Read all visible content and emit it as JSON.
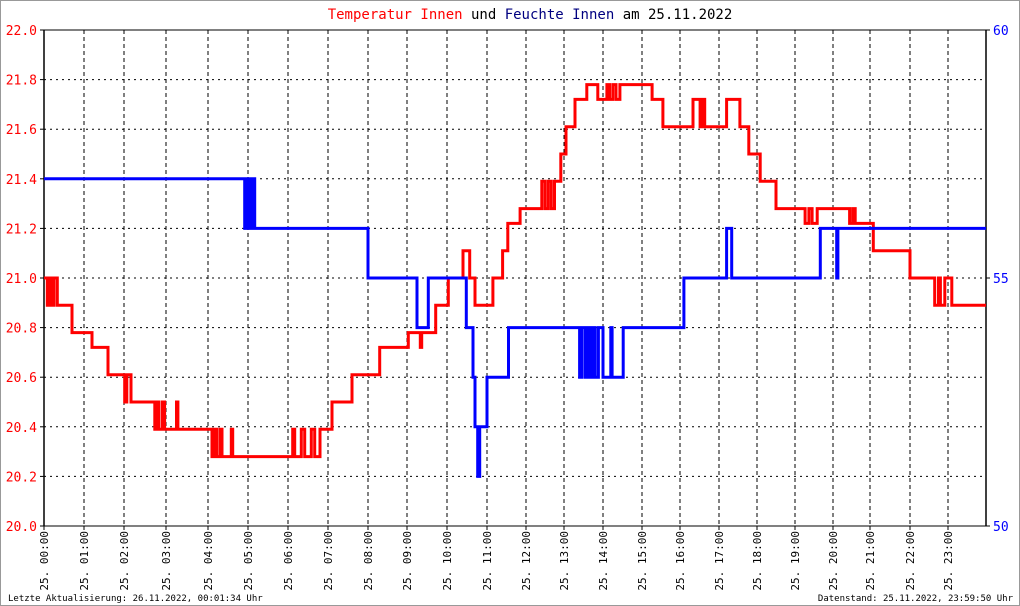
{
  "title": {
    "part1": "Temperatur Innen",
    "part2": " und ",
    "part3": "Feuchte Innen",
    "part4": " am 25.11.2022"
  },
  "footer": {
    "left": "Letzte Aktualisierung: 26.11.2022, 00:01:34 Uhr",
    "right": "Datenstand: 25.11.2022, 23:59:50 Uhr"
  },
  "colors": {
    "temperature": "#ff0000",
    "humidity": "#0000ff",
    "title_humidity": "#000080",
    "grid": "#000000"
  },
  "chart_data": {
    "type": "line",
    "step": true,
    "grid": true,
    "x_range": [
      "00:00",
      "24:00"
    ],
    "x_tick_labels": [
      "25. 00:00",
      "25. 01:00",
      "25. 02:00",
      "25. 03:00",
      "25. 04:00",
      "25. 05:00",
      "25. 06:00",
      "25. 07:00",
      "25. 08:00",
      "25. 09:00",
      "25. 10:00",
      "25. 11:00",
      "25. 12:00",
      "25. 13:00",
      "25. 14:00",
      "25. 15:00",
      "25. 16:00",
      "25. 17:00",
      "25. 18:00",
      "25. 19:00",
      "25. 20:00",
      "25. 21:00",
      "25. 22:00",
      "25. 23:00"
    ],
    "y_left": {
      "range": [
        20.0,
        22.0
      ],
      "tick_labels": [
        "20.0",
        "20.2",
        "20.4",
        "20.6",
        "20.8",
        "21.0",
        "21.2",
        "21.4",
        "21.6",
        "21.8",
        "22.0"
      ]
    },
    "y_right": {
      "range": [
        50,
        60
      ],
      "tick_labels": [
        "50",
        "55",
        "60"
      ]
    },
    "series": [
      {
        "name": "Temperatur Innen",
        "axis": "left",
        "color": "#ff0000",
        "points": [
          [
            "00:00",
            21.0
          ],
          [
            "00:05",
            20.89
          ],
          [
            "00:08",
            21.0
          ],
          [
            "00:12",
            20.89
          ],
          [
            "00:15",
            21.0
          ],
          [
            "00:20",
            20.89
          ],
          [
            "00:42",
            20.78
          ],
          [
            "01:12",
            20.72
          ],
          [
            "01:36",
            20.61
          ],
          [
            "02:01",
            20.5
          ],
          [
            "02:04",
            20.61
          ],
          [
            "02:10",
            20.5
          ],
          [
            "02:44",
            20.39
          ],
          [
            "02:47",
            20.5
          ],
          [
            "02:50",
            20.39
          ],
          [
            "02:55",
            20.5
          ],
          [
            "02:58",
            20.39
          ],
          [
            "03:15",
            20.5
          ],
          [
            "03:17",
            20.39
          ],
          [
            "04:06",
            20.28
          ],
          [
            "04:10",
            20.39
          ],
          [
            "04:13",
            20.28
          ],
          [
            "04:18",
            20.39
          ],
          [
            "04:21",
            20.28
          ],
          [
            "04:35",
            20.39
          ],
          [
            "04:37",
            20.28
          ],
          [
            "06:07",
            20.39
          ],
          [
            "06:10",
            20.28
          ],
          [
            "06:20",
            20.39
          ],
          [
            "06:25",
            20.28
          ],
          [
            "06:35",
            20.39
          ],
          [
            "06:40",
            20.28
          ],
          [
            "06:48",
            20.39
          ],
          [
            "07:06",
            20.5
          ],
          [
            "07:36",
            20.61
          ],
          [
            "08:18",
            20.72
          ],
          [
            "09:02",
            20.78
          ],
          [
            "09:20",
            20.72
          ],
          [
            "09:22",
            20.78
          ],
          [
            "09:43",
            20.89
          ],
          [
            "10:02",
            21.0
          ],
          [
            "10:24",
            21.11
          ],
          [
            "10:34",
            21.0
          ],
          [
            "10:42",
            20.89
          ],
          [
            "11:09",
            21.0
          ],
          [
            "11:24",
            21.11
          ],
          [
            "11:32",
            21.22
          ],
          [
            "11:51",
            21.28
          ],
          [
            "12:25",
            21.39
          ],
          [
            "12:30",
            21.28
          ],
          [
            "12:35",
            21.39
          ],
          [
            "12:40",
            21.28
          ],
          [
            "12:45",
            21.39
          ],
          [
            "12:55",
            21.5
          ],
          [
            "13:03",
            21.61
          ],
          [
            "13:17",
            21.72
          ],
          [
            "13:35",
            21.78
          ],
          [
            "13:52",
            21.72
          ],
          [
            "14:06",
            21.78
          ],
          [
            "14:10",
            21.72
          ],
          [
            "14:15",
            21.78
          ],
          [
            "14:20",
            21.72
          ],
          [
            "14:26",
            21.78
          ],
          [
            "15:16",
            21.72
          ],
          [
            "15:33",
            21.61
          ],
          [
            "16:20",
            21.72
          ],
          [
            "16:31",
            21.61
          ],
          [
            "16:34",
            21.72
          ],
          [
            "16:38",
            21.61
          ],
          [
            "17:12",
            21.72
          ],
          [
            "17:33",
            21.61
          ],
          [
            "17:47",
            21.5
          ],
          [
            "18:05",
            21.39
          ],
          [
            "18:30",
            21.28
          ],
          [
            "19:16",
            21.22
          ],
          [
            "19:22",
            21.28
          ],
          [
            "19:27",
            21.22
          ],
          [
            "19:35",
            21.28
          ],
          [
            "20:27",
            21.22
          ],
          [
            "20:32",
            21.28
          ],
          [
            "20:36",
            21.22
          ],
          [
            "21:05",
            21.11
          ],
          [
            "22:00",
            21.0
          ],
          [
            "22:39",
            20.89
          ],
          [
            "22:45",
            21.0
          ],
          [
            "22:48",
            20.89
          ],
          [
            "22:55",
            21.0
          ],
          [
            "23:06",
            20.89
          ],
          [
            "24:00",
            20.89
          ]
        ]
      },
      {
        "name": "Feuchte Innen",
        "axis": "right",
        "color": "#0000ff",
        "points": [
          [
            "00:00",
            57
          ],
          [
            "04:55",
            56
          ],
          [
            "04:58",
            57
          ],
          [
            "05:02",
            56
          ],
          [
            "05:06",
            57
          ],
          [
            "05:10",
            56
          ],
          [
            "08:00",
            55
          ],
          [
            "09:15",
            54
          ],
          [
            "09:32",
            55
          ],
          [
            "10:29",
            54
          ],
          [
            "10:39",
            53
          ],
          [
            "10:42",
            52
          ],
          [
            "10:46",
            51
          ],
          [
            "10:49",
            52
          ],
          [
            "11:00",
            53
          ],
          [
            "11:33",
            54
          ],
          [
            "13:24",
            53
          ],
          [
            "13:27",
            54
          ],
          [
            "13:32",
            53
          ],
          [
            "13:36",
            54
          ],
          [
            "13:40",
            53
          ],
          [
            "13:44",
            54
          ],
          [
            "13:48",
            53
          ],
          [
            "13:53",
            54
          ],
          [
            "14:00",
            53
          ],
          [
            "14:12",
            54
          ],
          [
            "14:14",
            53
          ],
          [
            "14:31",
            54
          ],
          [
            "16:06",
            55
          ],
          [
            "17:12",
            56
          ],
          [
            "17:20",
            55
          ],
          [
            "19:40",
            56
          ],
          [
            "20:06",
            55
          ],
          [
            "20:08",
            56
          ],
          [
            "24:00",
            56
          ]
        ]
      }
    ]
  }
}
